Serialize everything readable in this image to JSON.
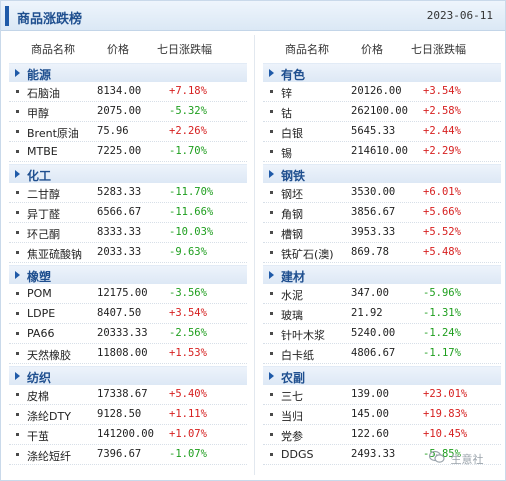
{
  "header": {
    "title": "商品涨跌榜",
    "date": "2023-06-11"
  },
  "columns": {
    "name": "商品名称",
    "price": "价格",
    "change": "七日涨跌幅"
  },
  "left": [
    {
      "category": "能源",
      "items": [
        {
          "name": "石脑油",
          "price": "8134.00",
          "change": "+7.18%",
          "dir": "up"
        },
        {
          "name": "甲醇",
          "price": "2075.00",
          "change": "-5.32%",
          "dir": "down"
        },
        {
          "name": "Brent原油",
          "price": "75.96",
          "change": "+2.26%",
          "dir": "up"
        },
        {
          "name": "MTBE",
          "price": "7225.00",
          "change": "-1.70%",
          "dir": "down"
        }
      ]
    },
    {
      "category": "化工",
      "items": [
        {
          "name": "二甘醇",
          "price": "5283.33",
          "change": "-11.70%",
          "dir": "down"
        },
        {
          "name": "异丁醛",
          "price": "6566.67",
          "change": "-11.66%",
          "dir": "down"
        },
        {
          "name": "环己酮",
          "price": "8333.33",
          "change": "-10.03%",
          "dir": "down"
        },
        {
          "name": "焦亚硫酸钠",
          "price": "2033.33",
          "change": "-9.63%",
          "dir": "down"
        }
      ]
    },
    {
      "category": "橡塑",
      "items": [
        {
          "name": "POM",
          "price": "12175.00",
          "change": "-3.56%",
          "dir": "down"
        },
        {
          "name": "LDPE",
          "price": "8407.50",
          "change": "+3.54%",
          "dir": "up"
        },
        {
          "name": "PA66",
          "price": "20333.33",
          "change": "-2.56%",
          "dir": "down"
        },
        {
          "name": "天然橡胶",
          "price": "11808.00",
          "change": "+1.53%",
          "dir": "up"
        }
      ]
    },
    {
      "category": "纺织",
      "items": [
        {
          "name": "皮棉",
          "price": "17338.67",
          "change": "+5.40%",
          "dir": "up"
        },
        {
          "name": "涤纶DTY",
          "price": "9128.50",
          "change": "+1.11%",
          "dir": "up"
        },
        {
          "name": "干茧",
          "price": "141200.00",
          "change": "+1.07%",
          "dir": "up"
        },
        {
          "name": "涤纶短纤",
          "price": "7396.67",
          "change": "-1.07%",
          "dir": "down"
        }
      ]
    }
  ],
  "right": [
    {
      "category": "有色",
      "items": [
        {
          "name": "锌",
          "price": "20126.00",
          "change": "+3.54%",
          "dir": "up"
        },
        {
          "name": "钴",
          "price": "262100.00",
          "change": "+2.58%",
          "dir": "up"
        },
        {
          "name": "白银",
          "price": "5645.33",
          "change": "+2.44%",
          "dir": "up"
        },
        {
          "name": "锡",
          "price": "214610.00",
          "change": "+2.29%",
          "dir": "up"
        }
      ]
    },
    {
      "category": "钢铁",
      "items": [
        {
          "name": "钢坯",
          "price": "3530.00",
          "change": "+6.01%",
          "dir": "up"
        },
        {
          "name": "角钢",
          "price": "3856.67",
          "change": "+5.66%",
          "dir": "up"
        },
        {
          "name": "槽钢",
          "price": "3953.33",
          "change": "+5.52%",
          "dir": "up"
        },
        {
          "name": "铁矿石(澳)",
          "price": "869.78",
          "change": "+5.48%",
          "dir": "up"
        }
      ]
    },
    {
      "category": "建材",
      "items": [
        {
          "name": "水泥",
          "price": "347.00",
          "change": "-5.96%",
          "dir": "down"
        },
        {
          "name": "玻璃",
          "price": "21.92",
          "change": "-1.31%",
          "dir": "down"
        },
        {
          "name": "针叶木浆",
          "price": "5240.00",
          "change": "-1.24%",
          "dir": "down"
        },
        {
          "name": "白卡纸",
          "price": "4806.67",
          "change": "-1.17%",
          "dir": "down"
        }
      ]
    },
    {
      "category": "农副",
      "items": [
        {
          "name": "三七",
          "price": "139.00",
          "change": "+23.01%",
          "dir": "up"
        },
        {
          "name": "当归",
          "price": "145.00",
          "change": "+19.83%",
          "dir": "up"
        },
        {
          "name": "党参",
          "price": "122.60",
          "change": "+10.45%",
          "dir": "up"
        },
        {
          "name": "DDGS",
          "price": "2493.33",
          "change": "-5.85%",
          "dir": "down"
        }
      ]
    }
  ],
  "watermark": {
    "text": "生意社",
    "icon": "wechat-icon"
  },
  "colors": {
    "up": "#d62020",
    "down": "#1e9e1e",
    "accent": "#1f5aa8"
  }
}
